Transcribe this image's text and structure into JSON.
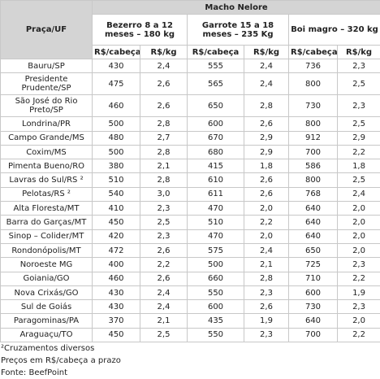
{
  "header": {
    "first_column": "Praça/UF",
    "group": "Macho Nelore",
    "categories": [
      "Bezerro 8 a 12 meses – 180 kg",
      "Garrote 15 a 18 meses – 235 Kg",
      "Boi magro – 320 kg"
    ],
    "subheaders": [
      "R$/cabeça",
      "R$/kg",
      "R$/cabeça",
      "R$/kg",
      "R$/cabeça",
      "R$/kg"
    ]
  },
  "table": {
    "rows": [
      [
        "Bauru/SP",
        "430",
        "2,4",
        "555",
        "2,4",
        "736",
        "2,3"
      ],
      [
        "Presidente Prudente/SP",
        "475",
        "2,6",
        "565",
        "2,4",
        "800",
        "2,5"
      ],
      [
        "São José do Rio Preto/SP",
        "460",
        "2,6",
        "650",
        "2,8",
        "730",
        "2,3"
      ],
      [
        "Londrina/PR",
        "500",
        "2,8",
        "600",
        "2,6",
        "800",
        "2,5"
      ],
      [
        "Campo Grande/MS",
        "480",
        "2,7",
        "670",
        "2,9",
        "912",
        "2,9"
      ],
      [
        "Coxim/MS",
        "500",
        "2,8",
        "680",
        "2,9",
        "700",
        "2,2"
      ],
      [
        "Pimenta Bueno/RO",
        "380",
        "2,1",
        "415",
        "1,8",
        "586",
        "1,8"
      ],
      [
        "Lavras do Sul/RS ²",
        "510",
        "2,8",
        "610",
        "2,6",
        "800",
        "2,5"
      ],
      [
        "Pelotas/RS ²",
        "540",
        "3,0",
        "611",
        "2,6",
        "768",
        "2,4"
      ],
      [
        "Alta Floresta/MT",
        "410",
        "2,3",
        "470",
        "2,0",
        "640",
        "2,0"
      ],
      [
        "Barra do Garças/MT",
        "450",
        "2,5",
        "510",
        "2,2",
        "640",
        "2,0"
      ],
      [
        "Sinop – Colider/MT",
        "420",
        "2,3",
        "470",
        "2,0",
        "640",
        "2,0"
      ],
      [
        "Rondonópolis/MT",
        "472",
        "2,6",
        "575",
        "2,4",
        "650",
        "2,0"
      ],
      [
        "Noroeste MG",
        "400",
        "2,2",
        "500",
        "2,1",
        "725",
        "2,3"
      ],
      [
        "Goiania/GO",
        "460",
        "2,6",
        "660",
        "2,8",
        "710",
        "2,2"
      ],
      [
        "Nova Crixás/GO",
        "430",
        "2,4",
        "550",
        "2,3",
        "600",
        "1,9"
      ],
      [
        "Sul de Goiás",
        "430",
        "2,4",
        "600",
        "2,6",
        "730",
        "2,3"
      ],
      [
        "Paragominas/PA",
        "370",
        "2,1",
        "435",
        "1,9",
        "640",
        "2,0"
      ],
      [
        "Araguaçu/TO",
        "450",
        "2,5",
        "550",
        "2,3",
        "700",
        "2,2"
      ]
    ]
  },
  "footnotes": [
    "²Cruzamentos diversos",
    "Preços em R$/cabeça a prazo",
    "Fonte: BeefPoint"
  ]
}
